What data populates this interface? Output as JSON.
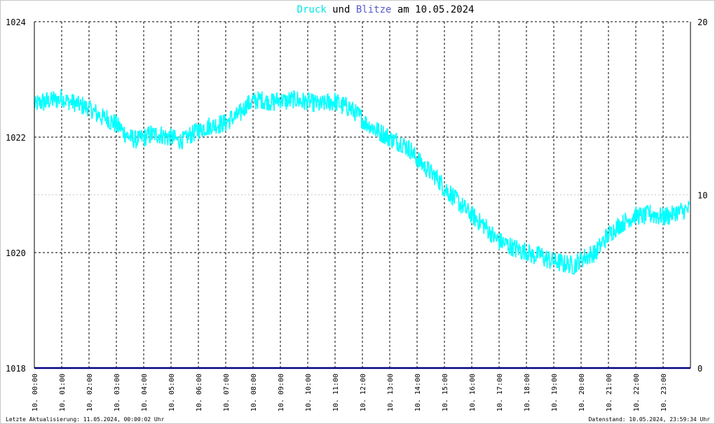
{
  "chart_data": {
    "type": "line",
    "title": {
      "parts": [
        {
          "text": "Druck",
          "color": "#00e5e5"
        },
        {
          "text": " und ",
          "color": "#000000"
        },
        {
          "text": "Blitze",
          "color": "#5a5acc"
        },
        {
          "text": " am 10.05.2024",
          "color": "#000000"
        }
      ]
    },
    "x_ticks": [
      "10. 00:00",
      "10. 01:00",
      "10. 02:00",
      "10. 03:00",
      "10. 04:00",
      "10. 05:00",
      "10. 06:00",
      "10. 07:00",
      "10. 08:00",
      "10. 09:00",
      "10. 10:00",
      "10. 11:00",
      "10. 12:00",
      "10. 13:00",
      "10. 14:00",
      "10. 15:00",
      "10. 16:00",
      "10. 17:00",
      "10. 18:00",
      "10. 19:00",
      "10. 20:00",
      "10. 21:00",
      "10. 22:00",
      "10. 23:00"
    ],
    "xlim_hours": [
      0,
      24
    ],
    "y_left": {
      "ticks": [
        "1024",
        "1022",
        "1020",
        "1018"
      ],
      "ylim": [
        1018,
        1024
      ]
    },
    "y_right": {
      "ticks": [
        "20",
        "10",
        "0"
      ],
      "ylim": [
        0,
        20
      ]
    },
    "grid": true,
    "series": [
      {
        "name": "Druck",
        "axis": "left",
        "color": "#00ffff",
        "x_hours": [
          0,
          0.25,
          0.5,
          0.75,
          1,
          1.25,
          1.5,
          1.75,
          2,
          2.25,
          2.5,
          2.75,
          3,
          3.25,
          3.5,
          3.75,
          4,
          4.25,
          4.5,
          4.75,
          5,
          5.25,
          5.5,
          5.75,
          6,
          6.25,
          6.5,
          6.75,
          7,
          7.25,
          7.5,
          7.75,
          8,
          8.25,
          8.5,
          8.75,
          9,
          9.25,
          9.5,
          9.75,
          10,
          10.25,
          10.5,
          10.75,
          11,
          11.25,
          11.5,
          11.75,
          12,
          12.25,
          12.5,
          12.75,
          13,
          13.25,
          13.5,
          13.75,
          14,
          14.25,
          14.5,
          14.75,
          15,
          15.25,
          15.5,
          15.75,
          16,
          16.25,
          16.5,
          16.75,
          17,
          17.25,
          17.5,
          17.75,
          18,
          18.25,
          18.5,
          18.75,
          19,
          19.25,
          19.5,
          19.75,
          20,
          20.25,
          20.5,
          20.75,
          21,
          21.25,
          21.5,
          21.75,
          22,
          22.25,
          22.5,
          22.75,
          23,
          23.25,
          23.5,
          23.75,
          23.98
        ],
        "values": [
          1022.55,
          1022.6,
          1022.62,
          1022.65,
          1022.68,
          1022.62,
          1022.58,
          1022.55,
          1022.5,
          1022.42,
          1022.35,
          1022.3,
          1022.22,
          1022.1,
          1021.98,
          1021.95,
          1021.98,
          1022.05,
          1022.05,
          1022.02,
          1022.0,
          1021.95,
          1021.95,
          1022.05,
          1022.12,
          1022.18,
          1022.2,
          1022.22,
          1022.25,
          1022.32,
          1022.4,
          1022.55,
          1022.62,
          1022.65,
          1022.62,
          1022.6,
          1022.65,
          1022.62,
          1022.65,
          1022.62,
          1022.62,
          1022.58,
          1022.55,
          1022.6,
          1022.62,
          1022.55,
          1022.52,
          1022.42,
          1022.3,
          1022.22,
          1022.12,
          1022.05,
          1021.98,
          1021.92,
          1021.88,
          1021.78,
          1021.62,
          1021.5,
          1021.38,
          1021.28,
          1021.12,
          1021.0,
          1020.88,
          1020.75,
          1020.65,
          1020.55,
          1020.45,
          1020.3,
          1020.2,
          1020.15,
          1020.08,
          1020.05,
          1020.02,
          1019.95,
          1019.95,
          1019.88,
          1019.85,
          1019.82,
          1019.8,
          1019.78,
          1019.88,
          1019.95,
          1019.98,
          1020.15,
          1020.3,
          1020.42,
          1020.5,
          1020.58,
          1020.65,
          1020.62,
          1020.68,
          1020.65,
          1020.62,
          1020.65,
          1020.7,
          1020.72,
          1020.75
        ]
      },
      {
        "name": "Blitze",
        "axis": "right",
        "color": "#000080",
        "x_hours": [
          0,
          24
        ],
        "values": [
          0,
          0
        ]
      }
    ]
  },
  "footer": {
    "left": "Letzte Aktualisierung: 11.05.2024, 00:00:02 Uhr",
    "right": "Datenstand: 10.05.2024, 23:59:34 Uhr"
  }
}
